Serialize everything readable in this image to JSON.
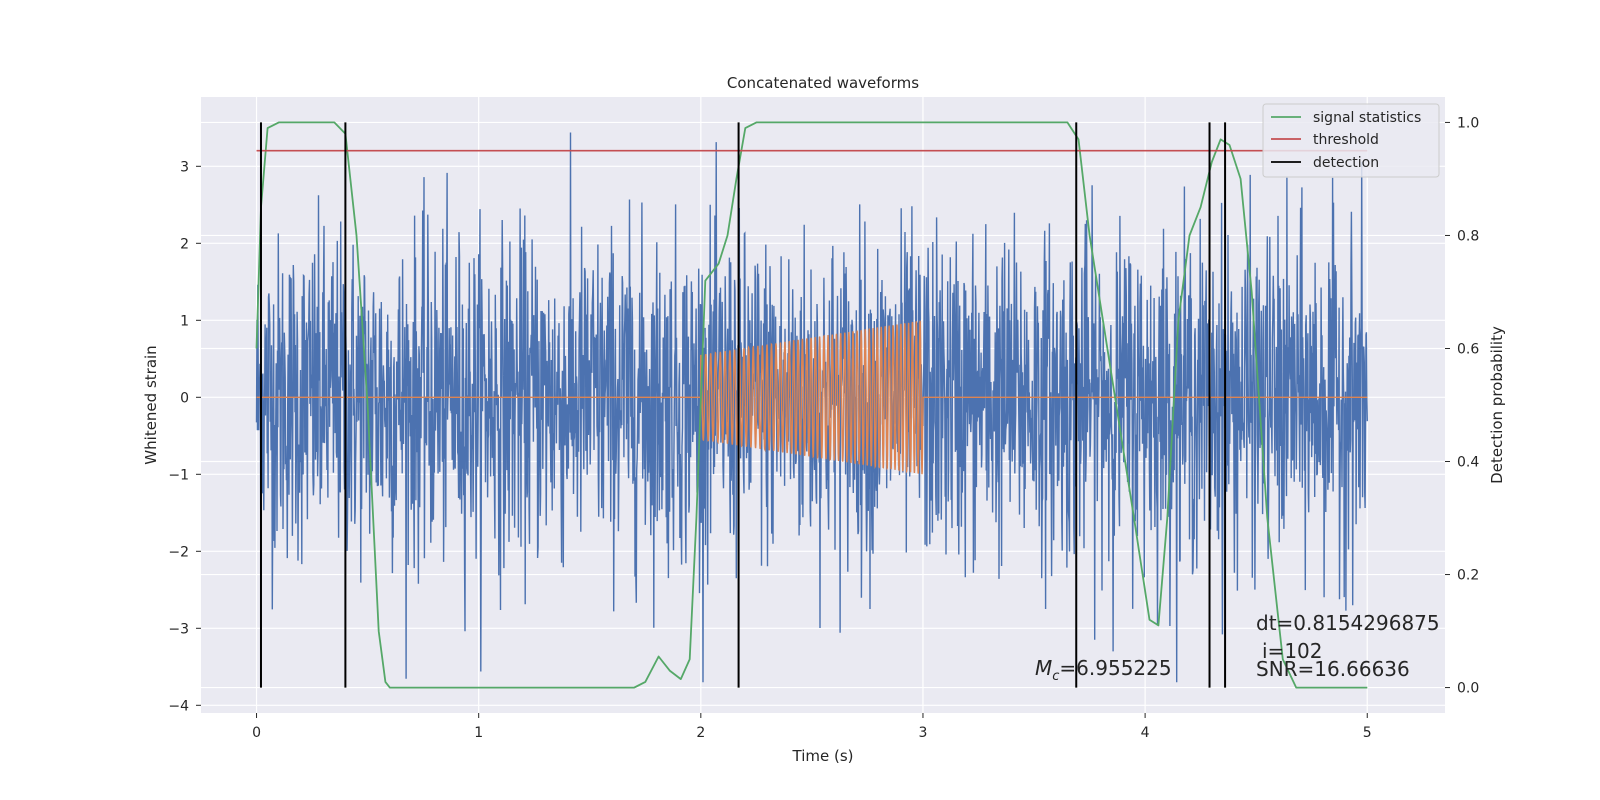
{
  "chart_data": {
    "type": "line",
    "title": "Concatenated waveforms",
    "xlabel": "Time (s)",
    "ylabel": "Whitened strain",
    "ylabel_right": "Detection probability",
    "xlim": [
      -0.25,
      5.35
    ],
    "ylim": [
      -4.1,
      3.9
    ],
    "ylim_right": [
      -0.045,
      1.045
    ],
    "xticks": [
      0,
      1,
      2,
      3,
      4,
      5
    ],
    "yticks": [
      -4,
      -3,
      -2,
      -1,
      0,
      1,
      2,
      3
    ],
    "yticks_right": [
      0.0,
      0.2,
      0.4,
      0.6,
      0.8,
      1.0
    ],
    "grid": true,
    "background": "#eaeaf2",
    "legend_position": "top-right",
    "noise": {
      "name": "",
      "color": "#4c72b0",
      "x_range": [
        0,
        5
      ],
      "typical_band": [
        -1.0,
        1.0
      ],
      "max_spike": 3.6,
      "min_spike": -3.7
    },
    "injected_signal": {
      "name": "",
      "color": "#dd8452",
      "x_start": 2.0,
      "x_end": 3.0,
      "amp_start": 0.55,
      "amp_end": 1.0,
      "cycles": 45
    },
    "series": [
      {
        "name": "signal statistics",
        "color": "#55a868",
        "axis": "right",
        "points": [
          [
            0.0,
            0.6
          ],
          [
            0.02,
            0.85
          ],
          [
            0.05,
            0.99
          ],
          [
            0.1,
            1.0
          ],
          [
            0.35,
            1.0
          ],
          [
            0.4,
            0.98
          ],
          [
            0.45,
            0.8
          ],
          [
            0.5,
            0.5
          ],
          [
            0.55,
            0.1
          ],
          [
            0.58,
            0.01
          ],
          [
            0.6,
            0.0
          ],
          [
            1.7,
            0.0
          ],
          [
            1.75,
            0.01
          ],
          [
            1.81,
            0.055
          ],
          [
            1.86,
            0.03
          ],
          [
            1.91,
            0.015
          ],
          [
            1.95,
            0.05
          ],
          [
            1.98,
            0.3
          ],
          [
            2.02,
            0.72
          ],
          [
            2.08,
            0.75
          ],
          [
            2.12,
            0.8
          ],
          [
            2.16,
            0.9
          ],
          [
            2.2,
            0.99
          ],
          [
            2.25,
            1.0
          ],
          [
            3.65,
            1.0
          ],
          [
            3.7,
            0.97
          ],
          [
            3.75,
            0.8
          ],
          [
            3.85,
            0.55
          ],
          [
            3.95,
            0.3
          ],
          [
            4.02,
            0.12
          ],
          [
            4.06,
            0.11
          ],
          [
            4.1,
            0.3
          ],
          [
            4.15,
            0.65
          ],
          [
            4.2,
            0.8
          ],
          [
            4.25,
            0.85
          ],
          [
            4.3,
            0.93
          ],
          [
            4.34,
            0.97
          ],
          [
            4.38,
            0.96
          ],
          [
            4.43,
            0.9
          ],
          [
            4.48,
            0.7
          ],
          [
            4.55,
            0.3
          ],
          [
            4.62,
            0.05
          ],
          [
            4.68,
            0.0
          ],
          [
            5.0,
            0.0
          ]
        ]
      },
      {
        "name": "threshold",
        "color": "#c44e52",
        "axis": "right",
        "points": [
          [
            0.0,
            0.95
          ],
          [
            5.0,
            0.95
          ]
        ]
      },
      {
        "name": "detection",
        "color": "#000000",
        "axis": "right",
        "vlines": [
          0.02,
          0.4,
          2.17,
          3.69,
          4.29,
          4.36
        ],
        "range": [
          0.0,
          1.0
        ]
      }
    ],
    "annotations": {
      "mc_label": "M",
      "mc_sub": "c",
      "mc_value": "=6.955225",
      "dt": "dt=0.8154296875",
      "i": "i=102",
      "snr": "SNR=16.66636"
    }
  }
}
